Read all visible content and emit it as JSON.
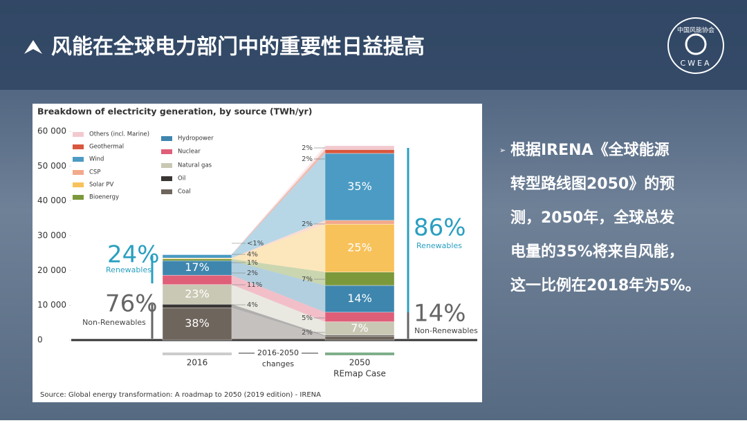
{
  "header": {
    "title": "风能在全球电力部门中的重要性日益提高",
    "logo_text": "中国风能协会",
    "logo_abbr": "CWEA"
  },
  "bullet": {
    "lines": [
      "根据IRENA《全球能源",
      "转型路线图2050》的预",
      "测，2050年，全球总发",
      "电量的35%将来自风能，",
      "这一比例在2018年为5%。"
    ]
  },
  "chart_data": {
    "type": "stacked_bar",
    "title": "Breakdown of electricity generation, by source (TWh/yr)",
    "categories": [
      "2016",
      "2050"
    ],
    "category_sublabels": [
      null,
      "REmap Case"
    ],
    "changes_label": "2016-2050",
    "changes_sublabel": "changes",
    "ylim": [
      0,
      60000
    ],
    "yticks": [
      0,
      {
        "value": 10000,
        "label": "10 000"
      },
      {
        "value": 20000,
        "label": "20 000"
      },
      {
        "value": 30000,
        "label": "30 000"
      },
      {
        "value": 40000,
        "label": "40 000"
      },
      {
        "value": 50000,
        "label": "50 000"
      },
      {
        "value": 60000,
        "label": "60 000"
      }
    ],
    "series": [
      {
        "name": "Coal",
        "color": "#6e655d",
        "values": [
          9300,
          1100
        ],
        "shares": [
          38,
          2
        ],
        "share_labels": [
          "38%",
          "2%"
        ]
      },
      {
        "name": "Oil",
        "color": "#3a3634",
        "values": [
          1000,
          300
        ],
        "shares": [
          4,
          null
        ],
        "share_labels": [
          "4%",
          null
        ]
      },
      {
        "name": "Natural gas",
        "color": "#c9c8b4",
        "values": [
          5650,
          3850
        ],
        "shares": [
          23,
          7
        ],
        "share_labels": [
          "23%",
          "7%"
        ]
      },
      {
        "name": "Nuclear",
        "color": "#df5f79",
        "values": [
          2700,
          2750
        ],
        "shares": [
          11,
          5
        ],
        "share_labels": [
          "11%",
          "5%"
        ]
      },
      {
        "name": "Hydropower",
        "color": "#3e86ae",
        "values": [
          4150,
          7700
        ],
        "shares": [
          17,
          14
        ],
        "share_labels": [
          "17%",
          "14%"
        ]
      },
      {
        "name": "Bioenergy",
        "color": "#7b983a",
        "values": [
          500,
          3850
        ],
        "shares": [
          2,
          7
        ],
        "share_labels": [
          "2%",
          "7%"
        ]
      },
      {
        "name": "Solar PV",
        "color": "#f8c25a",
        "values": [
          250,
          13750
        ],
        "shares": [
          1,
          25
        ],
        "share_labels": [
          "1%",
          "25%"
        ]
      },
      {
        "name": "CSP",
        "color": "#f3a98b",
        "values": [
          50,
          1100
        ],
        "shares": [
          null,
          2
        ],
        "share_labels": [
          null,
          "2%"
        ]
      },
      {
        "name": "Wind",
        "color": "#4b9bc4",
        "values": [
          950,
          19250
        ],
        "shares": [
          4,
          35
        ],
        "share_labels": [
          "4%",
          "35%"
        ]
      },
      {
        "name": "Geothermal",
        "color": "#d8573e",
        "values": [
          80,
          1100
        ],
        "shares": [
          null,
          2
        ],
        "share_labels": [
          null,
          "2%"
        ]
      },
      {
        "name": "Others (incl. Marine)",
        "color": "#f2c9cf",
        "values": [
          20,
          1100
        ],
        "shares": [
          1,
          2
        ],
        "share_labels": [
          "<1%",
          "2%"
        ]
      }
    ],
    "annotations": [
      {
        "text": "24%",
        "caption": "Renewables"
      },
      {
        "text": "76%",
        "caption": "Non-Renewables"
      },
      {
        "text": "86%",
        "caption": "Renewables"
      },
      {
        "text": "14%",
        "caption": "Non-Renewables"
      }
    ],
    "source": "Source: Global energy transformation: A roadmap to 2050 (2019 edition) - IRENA"
  }
}
